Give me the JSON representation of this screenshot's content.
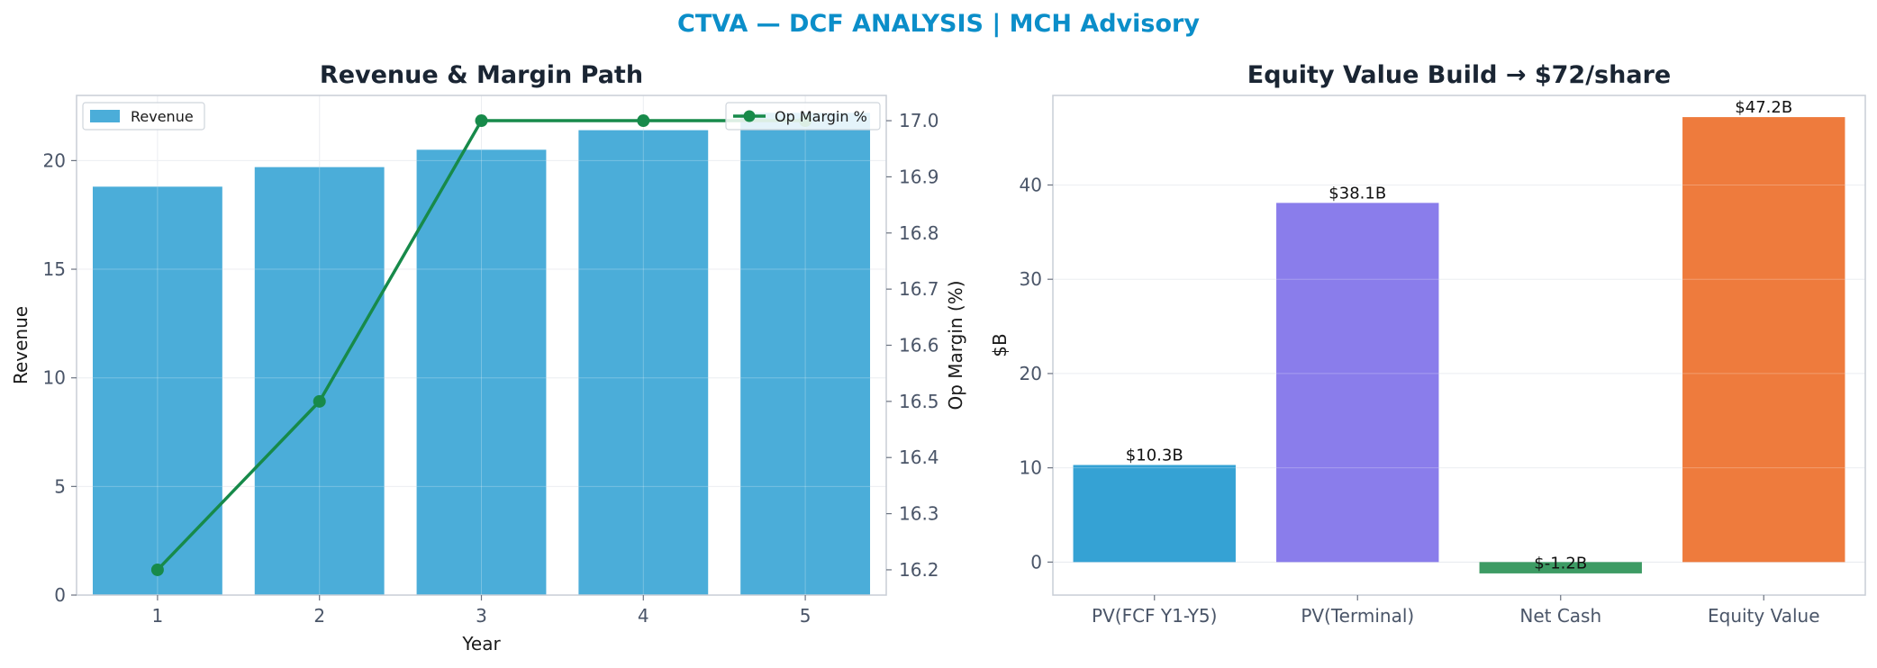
{
  "figure": {
    "suptitle": "CTVA — DCF ANALYSIS | MCH Advisory",
    "suptitle_color": "#0b8ec9"
  },
  "chart_data": [
    {
      "type": "bar",
      "title": "Revenue & Margin Path",
      "xlabel": "Year",
      "ylabel": "Revenue",
      "y2label": "Op Margin (%)",
      "categories": [
        "1",
        "2",
        "3",
        "4",
        "5"
      ],
      "ylim": [
        0,
        23.0
      ],
      "yticks": [
        0,
        5,
        10,
        15,
        20
      ],
      "y2lim": [
        16.155,
        17.045
      ],
      "y2ticks": [
        16.2,
        16.3,
        16.4,
        16.5,
        16.6,
        16.7,
        16.8,
        16.9,
        17.0
      ],
      "grid": true,
      "series": [
        {
          "name": "Revenue",
          "kind": "bar",
          "axis": "left",
          "color": "#4badd9",
          "values": [
            18.8,
            19.7,
            20.5,
            21.4,
            22.2
          ]
        },
        {
          "name": "Op Margin %",
          "kind": "line",
          "axis": "right",
          "color": "#178a4a",
          "values": [
            16.2,
            16.5,
            17.0,
            17.0,
            17.0
          ]
        }
      ],
      "legends": [
        {
          "placement": "upper-left",
          "entries": [
            "Revenue"
          ]
        },
        {
          "placement": "upper-right",
          "entries": [
            "Op Margin %"
          ]
        }
      ]
    },
    {
      "type": "bar",
      "title": "Equity Value Build → $72/share",
      "xlabel": "",
      "ylabel": "$B",
      "categories": [
        "PV(FCF Y1-Y5)",
        "PV(Terminal)",
        "Net Cash",
        "Equity Value"
      ],
      "values": [
        10.3,
        38.1,
        -1.2,
        47.2
      ],
      "data_labels": [
        "$10.3B",
        "$38.1B",
        "$-1.2B",
        "$47.2B"
      ],
      "colors": [
        "#35a2d4",
        "#8a7deb",
        "#3d9b64",
        "#ee7b3d"
      ],
      "ylim": [
        -3.5,
        49.5
      ],
      "yticks": [
        0,
        10,
        20,
        30,
        40
      ],
      "grid": true
    }
  ]
}
